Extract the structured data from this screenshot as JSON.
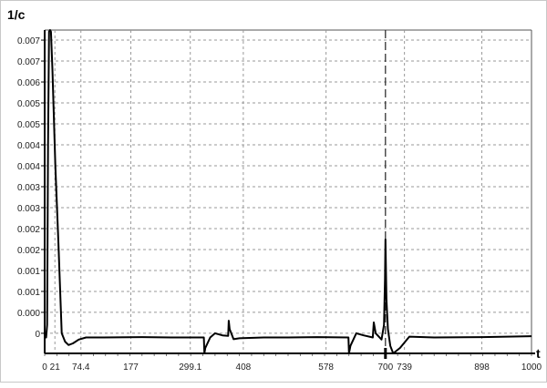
{
  "chart_data": {
    "type": "line",
    "title": "",
    "xlabel": "t",
    "ylabel": "1/c",
    "xlim": [
      0,
      1000
    ],
    "ylim": [
      -0.00048,
      0.00724
    ],
    "grid": true,
    "x_ticks": [
      {
        "value": 0,
        "label": "0"
      },
      {
        "value": 21,
        "label": "21"
      },
      {
        "value": 74.4,
        "label": "74.4"
      },
      {
        "value": 177,
        "label": "177"
      },
      {
        "value": 299.1,
        "label": "299.1"
      },
      {
        "value": 408,
        "label": "408"
      },
      {
        "value": 578,
        "label": "578"
      },
      {
        "value": 700,
        "label": "700"
      },
      {
        "value": 739,
        "label": "739"
      },
      {
        "value": 898,
        "label": "898"
      },
      {
        "value": 1000,
        "label": "1000"
      }
    ],
    "y_ticks": [
      {
        "value": 0.007,
        "label": "0.007"
      },
      {
        "value": 0.0065,
        "label": "0.007"
      },
      {
        "value": 0.006,
        "label": "0.006"
      },
      {
        "value": 0.0055,
        "label": "0.005"
      },
      {
        "value": 0.005,
        "label": "0.005"
      },
      {
        "value": 0.0045,
        "label": "0.004"
      },
      {
        "value": 0.004,
        "label": "0.004"
      },
      {
        "value": 0.0035,
        "label": "0.003"
      },
      {
        "value": 0.003,
        "label": "0.003"
      },
      {
        "value": 0.0025,
        "label": "0.002"
      },
      {
        "value": 0.002,
        "label": "0.002"
      },
      {
        "value": 0.0015,
        "label": "0.001"
      },
      {
        "value": 0.001,
        "label": "0.001"
      },
      {
        "value": 0.0005,
        "label": "0.000"
      },
      {
        "value": 0,
        "label": "0"
      }
    ],
    "marker_line_x": 700,
    "series": [
      {
        "color": "#000000",
        "x": [
          0,
          3,
          5,
          7,
          9,
          11,
          13,
          16,
          22,
          28,
          35,
          42,
          49,
          58,
          70,
          85,
          120,
          200,
          260,
          327,
          328,
          330,
          340,
          350,
          365,
          377,
          378,
          380,
          388,
          400,
          450,
          500,
          560,
          624,
          625,
          628,
          640,
          655,
          674,
          676,
          680,
          692,
          697,
          699,
          700,
          702,
          705,
          710,
          716,
          730,
          749,
          800,
          900,
          1000
        ],
        "y": [
          -0.0001,
          -0.0001,
          0.0002,
          0.0045,
          0.0072,
          0.0073,
          0.0072,
          0.0063,
          0.004,
          0.0022,
          0.0,
          -0.0002,
          -0.00028,
          -0.00024,
          -0.00015,
          -0.0001,
          -0.0001,
          -9e-05,
          -0.0001,
          -0.0001,
          -0.00048,
          -0.00035,
          -0.0001,
          0.0,
          -5e-05,
          -6e-05,
          0.0003,
          0.0001,
          -0.00014,
          -0.00012,
          -0.0001,
          -0.0001,
          -9e-05,
          -0.0001,
          -0.00048,
          -0.0003,
          0.0,
          -5e-05,
          -0.0001,
          0.00026,
          0.0,
          -0.00015,
          0.0002,
          0.0013,
          0.00224,
          0.0008,
          0.0001,
          -0.0003,
          -0.00048,
          -0.00035,
          -8e-05,
          -0.0001,
          -9e-05,
          -7e-05
        ]
      }
    ]
  }
}
